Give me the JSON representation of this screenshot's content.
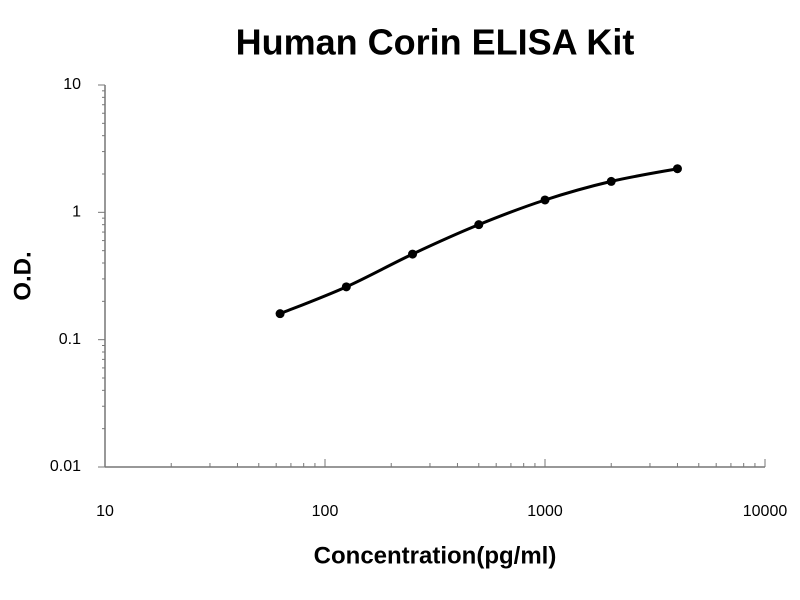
{
  "chart_data": {
    "type": "line",
    "title": "Human Corin ELISA Kit",
    "xlabel": "Concentration(pg/ml)",
    "ylabel": "O.D.",
    "x": [
      62.5,
      125,
      250,
      500,
      1000,
      2000,
      4000
    ],
    "values": [
      0.16,
      0.26,
      0.47,
      0.8,
      1.25,
      1.75,
      2.2
    ],
    "color": "#000000",
    "xscale": "log",
    "yscale": "log",
    "xlim": [
      10,
      10000
    ],
    "xticks": [
      10,
      100,
      1000,
      10000
    ],
    "ylim": [
      0.01,
      10
    ],
    "yticks": [
      0.01,
      0.1,
      1,
      10
    ],
    "grid": false
  }
}
